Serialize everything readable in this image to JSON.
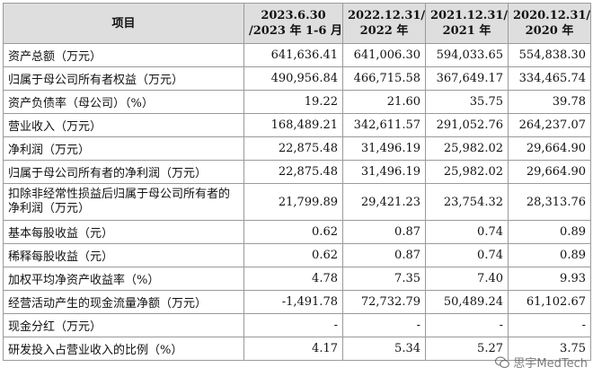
{
  "table": {
    "header": {
      "item": "项目",
      "periods": [
        [
          "2023.6.30",
          "/2023 年 1-6 月"
        ],
        [
          "2022.12.31/",
          "2022 年"
        ],
        [
          "2021.12.31/",
          "2021 年"
        ],
        [
          "2020.12.31/",
          "2020 年"
        ]
      ]
    },
    "rows": [
      {
        "label": "资产总额（万元）",
        "values": [
          "641,636.41",
          "641,006.30",
          "594,033.65",
          "554,838.30"
        ]
      },
      {
        "label": "归属于母公司所有者权益（万元）",
        "values": [
          "490,956.84",
          "466,715.58",
          "367,649.17",
          "334,465.74"
        ]
      },
      {
        "label": "资产负债率（母公司）（%）",
        "values": [
          "19.22",
          "21.60",
          "35.75",
          "39.78"
        ]
      },
      {
        "label": "营业收入（万元）",
        "values": [
          "168,489.21",
          "342,611.57",
          "291,052.76",
          "264,237.07"
        ]
      },
      {
        "label": "净利润（万元）",
        "values": [
          "22,875.48",
          "31,496.19",
          "25,982.02",
          "29,664.90"
        ]
      },
      {
        "label": "归属于母公司所有者的净利润（万元）",
        "values": [
          "22,875.48",
          "31,496.19",
          "25,982.02",
          "29,664.90"
        ]
      },
      {
        "label": "扣除非经常性损益后归属于母公司所有者的净利润（万元）",
        "values": [
          "21,799.89",
          "29,421.23",
          "23,754.32",
          "28,313.76"
        ]
      },
      {
        "label": "基本每股收益（元）",
        "values": [
          "0.62",
          "0.87",
          "0.74",
          "0.89"
        ]
      },
      {
        "label": "稀释每股收益（元）",
        "values": [
          "0.62",
          "0.87",
          "0.74",
          "0.89"
        ]
      },
      {
        "label": "加权平均净资产收益率（%）",
        "values": [
          "4.78",
          "7.35",
          "7.40",
          "9.93"
        ]
      },
      {
        "label": "经营活动产生的现金流量净额（万元）",
        "values": [
          "-1,491.78",
          "72,732.79",
          "50,489.24",
          "61,102.67"
        ]
      },
      {
        "label": "现金分红（万元）",
        "values": [
          "-",
          "-",
          "-",
          "-"
        ]
      },
      {
        "label": "研发投入占营业收入的比例（%）",
        "values": [
          "4.17",
          "5.34",
          "5.27",
          "3.75"
        ]
      }
    ]
  },
  "watermark": {
    "text": "思宇MedTech",
    "icon": "wechat-icon"
  }
}
